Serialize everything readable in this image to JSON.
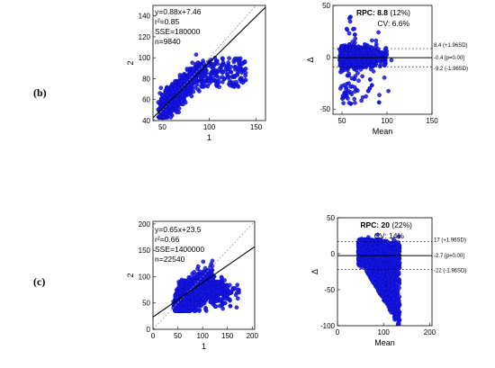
{
  "panels": [
    {
      "label": "(b)"
    },
    {
      "label": "(c)"
    }
  ],
  "colors": {
    "points": "#1616e8",
    "edge": "#0a0ab8",
    "line": "#000000",
    "identity": "#999999"
  },
  "chart_data": [
    {
      "id": "b-corr",
      "type": "scatter",
      "xlabel": "1",
      "ylabel": "2",
      "xlim": [
        40,
        160
      ],
      "ylim": [
        40,
        150
      ],
      "xticks": [
        50,
        100,
        150
      ],
      "yticks": [
        40,
        60,
        80,
        100,
        120,
        140
      ],
      "stats": [
        "y=0.88x+7.46",
        "r²=0.85",
        "SSE=180000",
        "n=9840"
      ],
      "fit": {
        "slope": 0.88,
        "intercept": 7.46
      },
      "identity_line": true,
      "points_note": "dense cloud",
      "n": 9840
    },
    {
      "id": "b-ba",
      "type": "scatter",
      "xlabel": "Mean",
      "ylabel": "Δ",
      "xlim": [
        40,
        150
      ],
      "ylim": [
        -55,
        50
      ],
      "xticks": [
        50,
        100,
        150
      ],
      "yticks": [
        -50,
        0,
        50
      ],
      "stats_title": {
        "label": "RPC:",
        "value": "8.8",
        "pct": "(12%)"
      },
      "cv": "CV: 6.6%",
      "lines": [
        {
          "value": 8.4,
          "label": "8.4 (+1.96SD)"
        },
        {
          "value": -0.4,
          "label": "-0.4 [p=0.00]"
        },
        {
          "value": -9.2,
          "label": "-9.2 (-1.96SD)"
        }
      ]
    },
    {
      "id": "c-corr",
      "type": "scatter",
      "xlabel": "1",
      "ylabel": "2",
      "xlim": [
        0,
        205
      ],
      "ylim": [
        0,
        205
      ],
      "xticks": [
        0,
        50,
        100,
        150,
        200
      ],
      "yticks": [
        0,
        50,
        100,
        150,
        200
      ],
      "stats": [
        "y=0.65x+23.5",
        "r²=0.66",
        "SSE=1400000",
        "n=22540"
      ],
      "fit": {
        "slope": 0.65,
        "intercept": 23.5
      },
      "identity_line": true,
      "n": 22540
    },
    {
      "id": "c-ba",
      "type": "scatter",
      "xlabel": "Mean",
      "ylabel": "Δ",
      "xlim": [
        0,
        205
      ],
      "ylim": [
        -100,
        50
      ],
      "xticks": [
        0,
        100,
        200
      ],
      "yticks": [
        -100,
        -50,
        0,
        50
      ],
      "stats_title": {
        "label": "RPC:",
        "value": "20",
        "pct": "(22%)"
      },
      "cv": "CV: 14%",
      "lines": [
        {
          "value": 17,
          "label": "17 (+1.96SD)"
        },
        {
          "value": -2.7,
          "label": "-2.7 [p=0.00]"
        },
        {
          "value": -22,
          "label": "-22 (-1.96SD)"
        }
      ]
    }
  ]
}
